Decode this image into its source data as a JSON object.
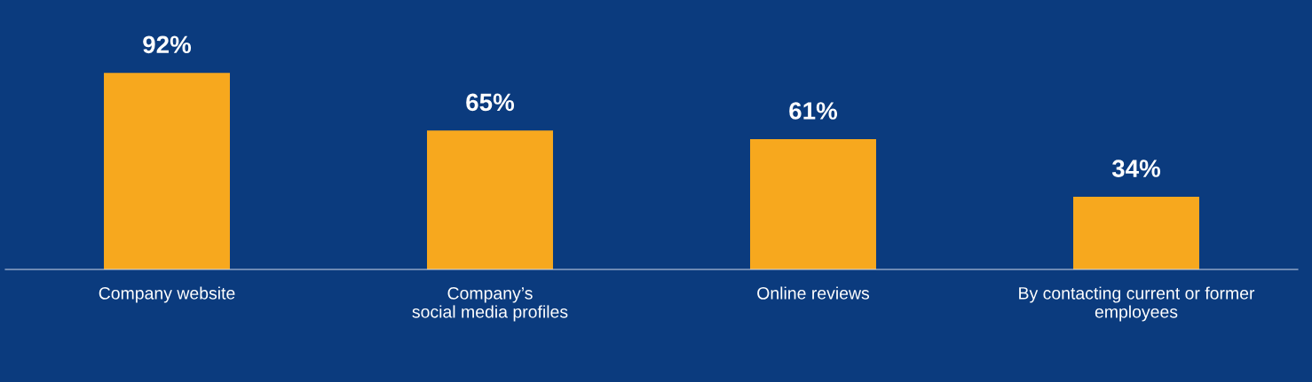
{
  "chart_data": {
    "type": "bar",
    "categories": [
      "Company website",
      "Company’s\nsocial media profiles",
      "Online reviews",
      "By contacting current or former\nemployees"
    ],
    "values": [
      92,
      65,
      61,
      34
    ],
    "color": "#f7a81e",
    "value_labels": [
      "92%",
      "65%",
      "61%",
      "34%"
    ],
    "grid": false,
    "legend": false
  }
}
